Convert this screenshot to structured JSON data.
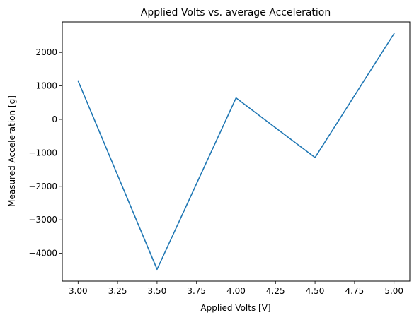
{
  "chart_data": {
    "type": "line",
    "title": "Applied Volts vs. average Acceleration",
    "xlabel": "Applied Volts [V]",
    "ylabel": "Measured Acceleration [g]",
    "x": [
      3.0,
      3.5,
      4.0,
      4.5,
      5.0
    ],
    "series": [
      {
        "values": [
          1150,
          -4480,
          640,
          -1140,
          2560
        ],
        "color": "#1f77b4"
      }
    ],
    "xlim": [
      2.9,
      5.1
    ],
    "ylim": [
      -4832,
      2912
    ],
    "xticks": [
      3.0,
      3.25,
      3.5,
      3.75,
      4.0,
      4.25,
      4.5,
      4.75,
      5.0
    ],
    "xtick_labels": [
      "3.00",
      "3.25",
      "3.50",
      "3.75",
      "4.00",
      "4.25",
      "4.50",
      "4.75",
      "5.00"
    ],
    "yticks": [
      -4000,
      -3000,
      -2000,
      -1000,
      0,
      1000,
      2000
    ],
    "ytick_labels": [
      "−4000",
      "−3000",
      "−2000",
      "−1000",
      "0",
      "1000",
      "2000"
    ],
    "grid": false,
    "legend": false
  }
}
